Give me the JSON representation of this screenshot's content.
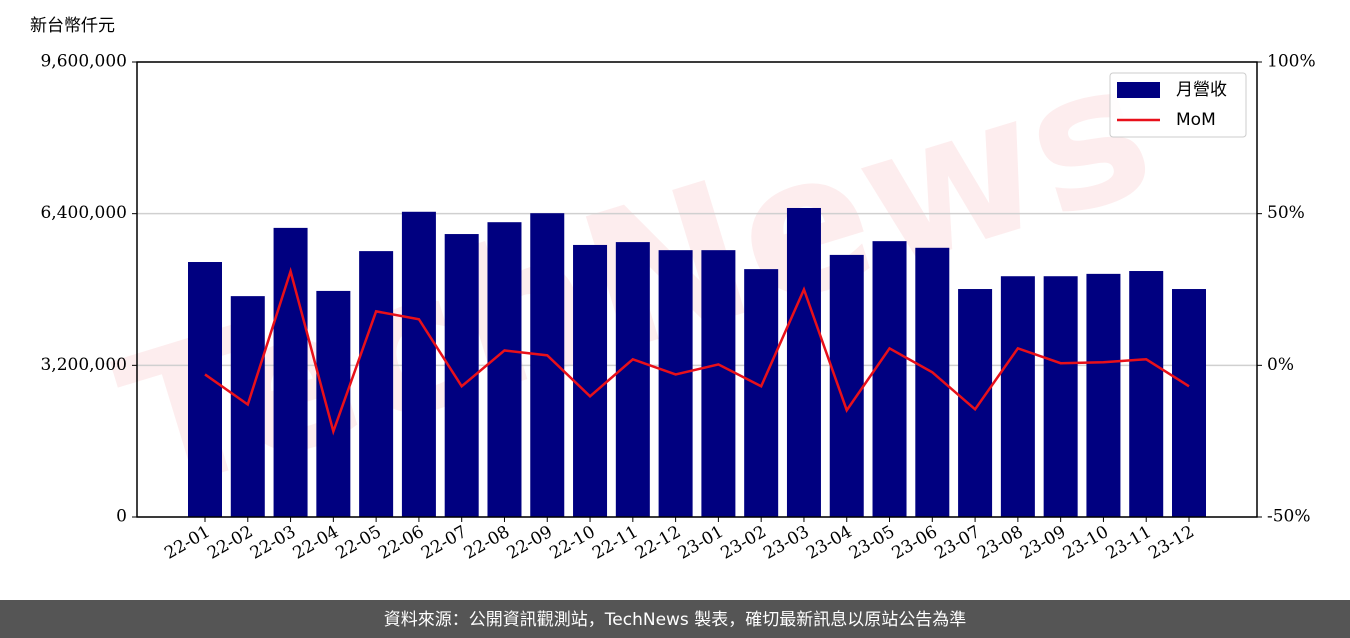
{
  "chart_data": {
    "type": "bar",
    "y_label": "新台幣仟元",
    "watermark": "TechNews",
    "footer": "資料來源：公開資訊觀測站，TechNews 製表，確切最新訊息以原站公告為準",
    "categories": [
      "22-01",
      "22-02",
      "22-03",
      "22-04",
      "22-05",
      "22-06",
      "22-07",
      "22-08",
      "22-09",
      "22-10",
      "22-11",
      "22-12",
      "23-01",
      "23-02",
      "23-03",
      "23-04",
      "23-05",
      "23-06",
      "23-07",
      "23-08",
      "23-09",
      "23-10",
      "23-11",
      "23-12"
    ],
    "series": [
      {
        "name": "月營收",
        "color": "#000080",
        "values": [
          5380000,
          4660000,
          6100000,
          4770000,
          5610000,
          6440000,
          5970000,
          6220000,
          6410000,
          5740000,
          5800000,
          5630000,
          5630000,
          5230000,
          6520000,
          5530000,
          5820000,
          5680000,
          4810000,
          5080000,
          5080000,
          5130000,
          5190000,
          4810000
        ]
      },
      {
        "name": "MoM",
        "color": "#e8101a",
        "type": "line",
        "axis": "y2",
        "values": [
          -3,
          -12.9,
          31,
          -21.8,
          17.8,
          15.2,
          -6.9,
          4.9,
          3.3,
          -10.2,
          2,
          -3,
          0.3,
          -6.9,
          25,
          -14.8,
          5.6,
          -2.3,
          -14.5,
          5.6,
          0.7,
          1,
          2,
          -6.9
        ]
      }
    ],
    "ylim": [
      0,
      9600000
    ],
    "yticks": [
      0,
      {
        "value": 3200000,
        "label": "3,200,000"
      },
      {
        "value": 6400000,
        "label": "6,400,000"
      },
      {
        "value": 9600000,
        "label": "9,600,000"
      }
    ],
    "y2lim": [
      -50,
      100
    ],
    "y2ticks": [
      {
        "value": -50,
        "label": "-50%"
      },
      {
        "value": 0,
        "label": "0%"
      },
      {
        "value": 50,
        "label": "50%"
      },
      {
        "value": 100,
        "label": "100%"
      }
    ],
    "grid": true,
    "legend": "upper right"
  }
}
